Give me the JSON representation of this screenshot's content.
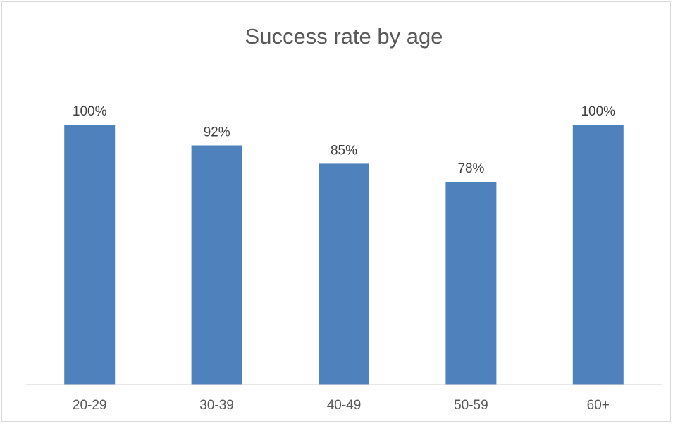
{
  "chart_data": {
    "type": "bar",
    "title": "Success rate by age",
    "categories": [
      "20-29",
      "30-39",
      "40-49",
      "50-59",
      "60+"
    ],
    "values": [
      100,
      92,
      85,
      78,
      100
    ],
    "data_labels": [
      "100%",
      "92%",
      "85%",
      "78%",
      "100%"
    ],
    "xlabel": "",
    "ylabel": "",
    "ylim": [
      0,
      100
    ],
    "grid": false,
    "legend": "none",
    "bar_color": "#4f81bd",
    "axis_color": "#d9d9d9"
  }
}
